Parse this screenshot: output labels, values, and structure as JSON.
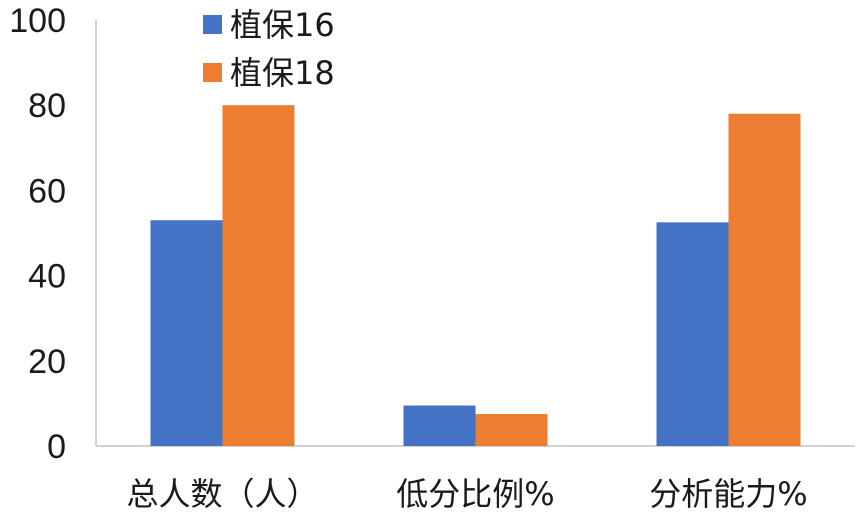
{
  "chart_data": {
    "type": "bar",
    "title": "",
    "xlabel": "",
    "ylabel": "",
    "categories": [
      "总人数（人）",
      "低分比例%",
      "分析能力%"
    ],
    "series": [
      {
        "name": "植保16",
        "values": [
          53,
          9.5,
          52.5
        ],
        "color": "#4472c4"
      },
      {
        "name": "植保18",
        "values": [
          80,
          7.5,
          78
        ],
        "color": "#ed7d31"
      }
    ],
    "ylim": [
      0,
      100
    ],
    "yticks": [
      0,
      20,
      40,
      60,
      80,
      100
    ],
    "grid": false,
    "legend_position": "top-left"
  }
}
